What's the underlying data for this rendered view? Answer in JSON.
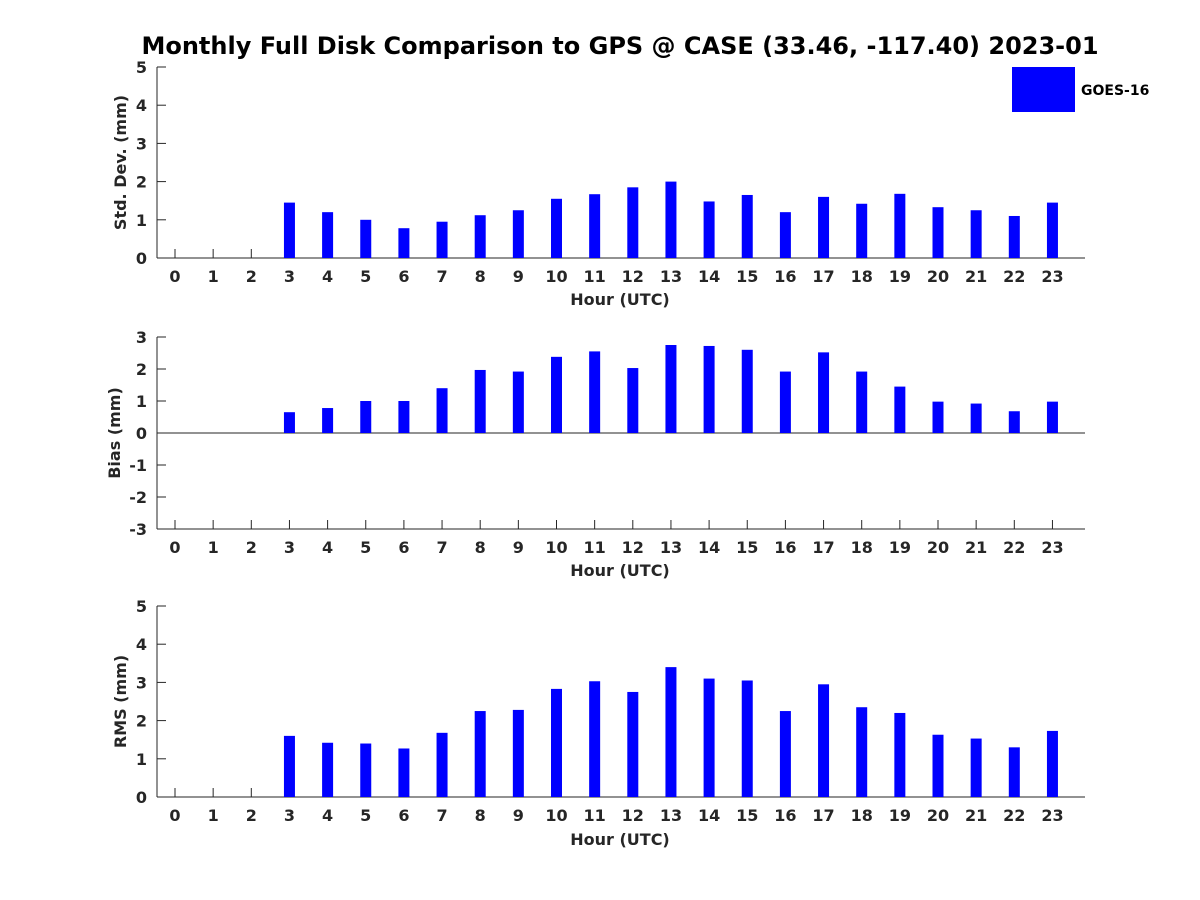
{
  "chart_data": {
    "title": "Monthly Full Disk Comparison to GPS @ CASE (33.46, -117.40) 2023-01",
    "legend": {
      "label": "GOES-16",
      "color": "#0000ff",
      "placement": "top-right"
    },
    "bar_color": "#0000ff",
    "panels": [
      {
        "type": "bar",
        "xlabel": "Hour (UTC)",
        "ylabel": "Std. Dev. (mm)",
        "ylim": [
          0,
          5
        ],
        "yticks": [
          "0",
          "1",
          "2",
          "3",
          "4",
          "5"
        ],
        "categories": [
          "0",
          "1",
          "2",
          "3",
          "4",
          "5",
          "6",
          "7",
          "8",
          "9",
          "10",
          "11",
          "12",
          "13",
          "14",
          "15",
          "16",
          "17",
          "18",
          "19",
          "20",
          "21",
          "22",
          "23"
        ],
        "values": [
          null,
          null,
          null,
          1.45,
          1.2,
          1.0,
          0.78,
          0.95,
          1.12,
          1.25,
          1.55,
          1.67,
          1.85,
          2.0,
          1.48,
          1.65,
          1.2,
          1.6,
          1.42,
          1.68,
          1.33,
          1.25,
          1.1,
          1.45
        ]
      },
      {
        "type": "bar",
        "xlabel": "Hour (UTC)",
        "ylabel": "Bias (mm)",
        "ylim": [
          -3,
          3
        ],
        "yticks": [
          "-3",
          "-2",
          "-1",
          "0",
          "1",
          "2",
          "3"
        ],
        "categories": [
          "0",
          "1",
          "2",
          "3",
          "4",
          "5",
          "6",
          "7",
          "8",
          "9",
          "10",
          "11",
          "12",
          "13",
          "14",
          "15",
          "16",
          "17",
          "18",
          "19",
          "20",
          "21",
          "22",
          "23"
        ],
        "values": [
          null,
          null,
          null,
          0.65,
          0.78,
          1.0,
          1.0,
          1.4,
          1.97,
          1.92,
          2.38,
          2.55,
          2.03,
          2.75,
          2.72,
          2.6,
          1.92,
          2.52,
          1.92,
          1.45,
          0.98,
          0.92,
          0.68,
          0.98
        ]
      },
      {
        "type": "bar",
        "xlabel": "Hour (UTC)",
        "ylabel": "RMS (mm)",
        "ylim": [
          0,
          5
        ],
        "yticks": [
          "0",
          "1",
          "2",
          "3",
          "4",
          "5"
        ],
        "categories": [
          "0",
          "1",
          "2",
          "3",
          "4",
          "5",
          "6",
          "7",
          "8",
          "9",
          "10",
          "11",
          "12",
          "13",
          "14",
          "15",
          "16",
          "17",
          "18",
          "19",
          "20",
          "21",
          "22",
          "23"
        ],
        "values": [
          null,
          null,
          null,
          1.6,
          1.42,
          1.4,
          1.27,
          1.68,
          2.25,
          2.28,
          2.83,
          3.03,
          2.75,
          3.4,
          3.1,
          3.05,
          2.25,
          2.95,
          2.35,
          2.2,
          1.63,
          1.53,
          1.3,
          1.73
        ]
      }
    ]
  }
}
